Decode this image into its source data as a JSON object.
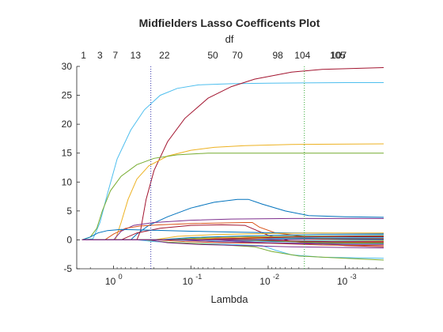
{
  "chart_data": {
    "type": "line",
    "title": "Midfielders Lasso Coefficents Plot",
    "top_axis_label": "df",
    "xlabel": "Lambda",
    "ylabel": "",
    "x_scale": "log",
    "x_direction": "reversed",
    "xlim": [
      3.0,
      0.00032
    ],
    "ylim": [
      -5,
      30
    ],
    "yticks": [
      "-5",
      "0",
      "5",
      "10",
      "15",
      "20",
      "25",
      "30"
    ],
    "xticks": [
      {
        "base": "10",
        "exp": "0",
        "value": 1
      },
      {
        "base": "10",
        "exp": "-1",
        "value": 0.1
      },
      {
        "base": "10",
        "exp": "-2",
        "value": 0.01
      },
      {
        "base": "10",
        "exp": "-3",
        "value": 0.001
      }
    ],
    "df_ticks": [
      {
        "label": "1",
        "lambda": 2.45
      },
      {
        "label": "3",
        "lambda": 1.5
      },
      {
        "label": "7",
        "lambda": 0.95
      },
      {
        "label": "13",
        "lambda": 0.52
      },
      {
        "label": "22",
        "lambda": 0.22
      },
      {
        "label": "50",
        "lambda": 0.052
      },
      {
        "label": "70",
        "lambda": 0.025
      },
      {
        "label": "98",
        "lambda": 0.0075
      },
      {
        "label": "104",
        "lambda": 0.0036
      },
      {
        "label": "105",
        "lambda": 0.00126
      },
      {
        "label": "107",
        "lambda": 0.00122
      }
    ],
    "vlines": [
      {
        "lambda": 0.33,
        "color": "#3333aa",
        "style": "dotted"
      },
      {
        "lambda": 0.0034,
        "color": "#33aa33",
        "style": "dotted"
      }
    ],
    "grid": false,
    "legend": "none",
    "series": [
      {
        "color": "#4DBEEE",
        "points": [
          [
            2.55,
            0
          ],
          [
            1.85,
            0.2
          ],
          [
            1.5,
            3
          ],
          [
            1.2,
            8
          ],
          [
            0.9,
            14
          ],
          [
            0.6,
            19
          ],
          [
            0.4,
            22.5
          ],
          [
            0.25,
            25
          ],
          [
            0.15,
            26.2
          ],
          [
            0.08,
            26.8
          ],
          [
            0.03,
            27
          ],
          [
            0.01,
            27.1
          ],
          [
            0.001,
            27.2
          ],
          [
            0.00032,
            27.2
          ]
        ]
      },
      {
        "color": "#A2142F",
        "points": [
          [
            2.55,
            0
          ],
          [
            0.5,
            0
          ],
          [
            0.45,
            1.5
          ],
          [
            0.38,
            7
          ],
          [
            0.3,
            12
          ],
          [
            0.2,
            17
          ],
          [
            0.12,
            21
          ],
          [
            0.06,
            24.5
          ],
          [
            0.03,
            26.5
          ],
          [
            0.015,
            27.8
          ],
          [
            0.005,
            29
          ],
          [
            0.002,
            29.5
          ],
          [
            0.00032,
            29.8
          ]
        ]
      },
      {
        "color": "#EDB120",
        "points": [
          [
            2.55,
            0
          ],
          [
            0.95,
            0
          ],
          [
            0.8,
            3
          ],
          [
            0.65,
            7
          ],
          [
            0.5,
            10.5
          ],
          [
            0.35,
            12.8
          ],
          [
            0.2,
            14.5
          ],
          [
            0.1,
            15.5
          ],
          [
            0.05,
            16
          ],
          [
            0.02,
            16.3
          ],
          [
            0.005,
            16.5
          ],
          [
            0.00032,
            16.6
          ]
        ]
      },
      {
        "color": "#77AC30",
        "points": [
          [
            2.55,
            0
          ],
          [
            2.0,
            0.5
          ],
          [
            1.65,
            2
          ],
          [
            1.4,
            5
          ],
          [
            1.1,
            8.5
          ],
          [
            0.8,
            11
          ],
          [
            0.5,
            13
          ],
          [
            0.3,
            14.1
          ],
          [
            0.15,
            14.7
          ],
          [
            0.06,
            15
          ],
          [
            0.01,
            15
          ],
          [
            0.00032,
            15
          ]
        ]
      },
      {
        "color": "#0072BD",
        "points": [
          [
            2.55,
            0
          ],
          [
            0.6,
            0
          ],
          [
            0.5,
            1
          ],
          [
            0.35,
            2.5
          ],
          [
            0.2,
            4
          ],
          [
            0.1,
            5.5
          ],
          [
            0.05,
            6.5
          ],
          [
            0.025,
            7
          ],
          [
            0.018,
            7
          ],
          [
            0.012,
            6.2
          ],
          [
            0.006,
            5
          ],
          [
            0.003,
            4.2
          ],
          [
            0.001,
            4
          ],
          [
            0.00032,
            3.9
          ]
        ]
      },
      {
        "color": "#7E2F8E",
        "points": [
          [
            2.55,
            0
          ],
          [
            1.0,
            0
          ],
          [
            0.8,
            1.5
          ],
          [
            0.55,
            2.5
          ],
          [
            0.3,
            3
          ],
          [
            0.1,
            3.4
          ],
          [
            0.03,
            3.6
          ],
          [
            0.005,
            3.7
          ],
          [
            0.00032,
            3.7
          ]
        ]
      },
      {
        "color": "#D95319",
        "points": [
          [
            2.55,
            0
          ],
          [
            1.3,
            0
          ],
          [
            1.0,
            1
          ],
          [
            0.7,
            2
          ],
          [
            0.45,
            2.4
          ],
          [
            0.25,
            2.6
          ],
          [
            0.1,
            2.8
          ],
          [
            0.02,
            3
          ],
          [
            0.016,
            3
          ],
          [
            0.013,
            2.2
          ],
          [
            0.008,
            1.2
          ],
          [
            0.003,
            0.5
          ],
          [
            0.00032,
            0.3
          ]
        ]
      },
      {
        "color": "#A2142F",
        "points": [
          [
            2.55,
            0
          ],
          [
            0.8,
            0
          ],
          [
            0.5,
            1.2
          ],
          [
            0.25,
            2
          ],
          [
            0.1,
            2.5
          ],
          [
            0.04,
            2.6
          ],
          [
            0.02,
            2.5
          ],
          [
            0.015,
            1.8
          ],
          [
            0.01,
            0.8
          ],
          [
            0.005,
            -0.3
          ],
          [
            0.001,
            -1
          ],
          [
            0.00032,
            -1.2
          ]
        ]
      },
      {
        "color": "#0072BD",
        "points": [
          [
            2.55,
            0
          ],
          [
            2.0,
            0.5
          ],
          [
            1.6,
            1.2
          ],
          [
            1.2,
            1.6
          ],
          [
            0.8,
            1.8
          ],
          [
            0.4,
            1.7
          ],
          [
            0.1,
            1.5
          ],
          [
            0.02,
            1.3
          ],
          [
            0.005,
            1.2
          ],
          [
            0.00032,
            1.1
          ]
        ]
      },
      {
        "color": "#4DBEEE",
        "points": [
          [
            2.55,
            0
          ],
          [
            0.5,
            0
          ],
          [
            0.3,
            -0.3
          ],
          [
            0.1,
            -0.6
          ],
          [
            0.03,
            -0.8
          ],
          [
            0.012,
            -1
          ],
          [
            0.008,
            -1.8
          ],
          [
            0.005,
            -2.6
          ],
          [
            0.002,
            -3
          ],
          [
            0.00032,
            -3.2
          ]
        ]
      },
      {
        "color": "#77AC30",
        "points": [
          [
            2.55,
            0
          ],
          [
            0.4,
            0
          ],
          [
            0.2,
            -0.4
          ],
          [
            0.05,
            -0.8
          ],
          [
            0.015,
            -1.2
          ],
          [
            0.009,
            -2
          ],
          [
            0.004,
            -2.8
          ],
          [
            0.001,
            -3.2
          ],
          [
            0.00032,
            -3.5
          ]
        ]
      },
      {
        "color": "#7E2F8E",
        "points": [
          [
            2.55,
            0
          ],
          [
            0.35,
            0
          ],
          [
            0.2,
            -0.5
          ],
          [
            0.08,
            -0.8
          ],
          [
            0.02,
            -1
          ],
          [
            0.005,
            -1.2
          ],
          [
            0.00032,
            -1.4
          ]
        ]
      },
      {
        "color": "#EDB120",
        "points": [
          [
            2.55,
            0
          ],
          [
            0.3,
            0
          ],
          [
            0.15,
            0.6
          ],
          [
            0.05,
            0.9
          ],
          [
            0.01,
            1.1
          ],
          [
            0.002,
            1.2
          ],
          [
            0.00032,
            1.2
          ]
        ]
      },
      {
        "color": "#D95319",
        "points": [
          [
            2.55,
            0
          ],
          [
            0.28,
            0
          ],
          [
            0.12,
            -0.3
          ],
          [
            0.04,
            -0.5
          ],
          [
            0.01,
            -0.6
          ],
          [
            0.002,
            -0.9
          ],
          [
            0.00032,
            -1
          ]
        ]
      },
      {
        "color": "#0072BD",
        "points": [
          [
            2.55,
            0
          ],
          [
            0.26,
            0
          ],
          [
            0.1,
            0.4
          ],
          [
            0.03,
            0.6
          ],
          [
            0.008,
            0.8
          ],
          [
            0.002,
            0.9
          ],
          [
            0.00032,
            0.9
          ]
        ]
      },
      {
        "color": "#77AC30",
        "points": [
          [
            2.55,
            0
          ],
          [
            0.22,
            0
          ],
          [
            0.08,
            0.3
          ],
          [
            0.02,
            0.5
          ],
          [
            0.005,
            0.6
          ],
          [
            0.00032,
            0.7
          ]
        ]
      },
      {
        "color": "#4DBEEE",
        "points": [
          [
            2.55,
            0
          ],
          [
            0.2,
            0
          ],
          [
            0.07,
            -0.2
          ],
          [
            0.02,
            -0.4
          ],
          [
            0.005,
            -0.6
          ],
          [
            0.00032,
            -0.7
          ]
        ]
      },
      {
        "color": "#A2142F",
        "points": [
          [
            2.55,
            0
          ],
          [
            0.18,
            0
          ],
          [
            0.06,
            0.2
          ],
          [
            0.015,
            0.3
          ],
          [
            0.004,
            0.4
          ],
          [
            0.00032,
            0.5
          ]
        ]
      },
      {
        "color": "#7E2F8E",
        "points": [
          [
            2.55,
            0
          ],
          [
            0.15,
            0
          ],
          [
            0.05,
            -0.3
          ],
          [
            0.012,
            -0.5
          ],
          [
            0.003,
            -0.6
          ],
          [
            0.00032,
            -0.6
          ]
        ]
      },
      {
        "color": "#EDB120",
        "points": [
          [
            2.55,
            0
          ],
          [
            0.12,
            0
          ],
          [
            0.04,
            0.4
          ],
          [
            0.01,
            0.5
          ],
          [
            0.003,
            0.3
          ],
          [
            0.00032,
            0.2
          ]
        ]
      },
      {
        "color": "#D95319",
        "points": [
          [
            2.55,
            0
          ],
          [
            0.1,
            0
          ],
          [
            0.03,
            0.2
          ],
          [
            0.008,
            0.4
          ],
          [
            0.002,
            0.2
          ],
          [
            0.00032,
            0.1
          ]
        ]
      },
      {
        "color": "#0072BD",
        "points": [
          [
            2.55,
            0
          ],
          [
            0.09,
            0
          ],
          [
            0.03,
            -0.1
          ],
          [
            0.008,
            -0.3
          ],
          [
            0.002,
            -0.4
          ],
          [
            0.00032,
            -0.5
          ]
        ]
      },
      {
        "color": "#77AC30",
        "points": [
          [
            2.55,
            0
          ],
          [
            0.08,
            0
          ],
          [
            0.025,
            0.1
          ],
          [
            0.007,
            0.2
          ],
          [
            0.002,
            0.3
          ],
          [
            0.00032,
            0.3
          ]
        ]
      },
      {
        "color": "#4DBEEE",
        "points": [
          [
            2.55,
            0
          ],
          [
            0.07,
            0
          ],
          [
            0.02,
            -0.2
          ],
          [
            0.006,
            -0.2
          ],
          [
            0.002,
            -0.1
          ],
          [
            0.00032,
            -0.1
          ]
        ]
      },
      {
        "color": "#A2142F",
        "points": [
          [
            2.55,
            0
          ],
          [
            0.06,
            0
          ],
          [
            0.02,
            0.3
          ],
          [
            0.005,
            0.5
          ],
          [
            0.001,
            0.6
          ],
          [
            0.00032,
            0.6
          ]
        ]
      },
      {
        "color": "#7E2F8E",
        "points": [
          [
            2.55,
            0
          ],
          [
            0.05,
            0
          ],
          [
            0.015,
            -0.4
          ],
          [
            0.004,
            -0.7
          ],
          [
            0.001,
            -0.8
          ],
          [
            0.00032,
            -0.8
          ]
        ]
      },
      {
        "color": "#EDB120",
        "points": [
          [
            2.55,
            0
          ],
          [
            0.04,
            0
          ],
          [
            0.012,
            0.2
          ],
          [
            0.003,
            0.1
          ],
          [
            0.001,
            0
          ],
          [
            0.00032,
            -0.1
          ]
        ]
      },
      {
        "color": "#D95319",
        "points": [
          [
            2.55,
            0
          ],
          [
            0.035,
            0
          ],
          [
            0.01,
            -0.1
          ],
          [
            0.003,
            -0.3
          ],
          [
            0.001,
            -0.4
          ],
          [
            0.00032,
            -0.4
          ]
        ]
      },
      {
        "color": "#0072BD",
        "points": [
          [
            2.55,
            0
          ],
          [
            0.03,
            0
          ],
          [
            0.01,
            0.1
          ],
          [
            0.003,
            0.2
          ],
          [
            0.001,
            0.1
          ],
          [
            0.00032,
            0
          ]
        ]
      },
      {
        "color": "#77AC30",
        "points": [
          [
            2.55,
            0
          ],
          [
            0.025,
            0
          ],
          [
            0.008,
            -0.2
          ],
          [
            0.002,
            -0.5
          ],
          [
            0.00032,
            -0.6
          ]
        ]
      },
      {
        "color": "#4DBEEE",
        "points": [
          [
            2.55,
            0
          ],
          [
            0.02,
            0
          ],
          [
            0.006,
            0.3
          ],
          [
            0.002,
            0.4
          ],
          [
            0.00032,
            0.4
          ]
        ]
      },
      {
        "color": "#A2142F",
        "points": [
          [
            2.55,
            0
          ],
          [
            0.015,
            0
          ],
          [
            0.005,
            -0.2
          ],
          [
            0.0015,
            -0.3
          ],
          [
            0.00032,
            -0.3
          ]
        ]
      },
      {
        "color": "#7E2F8E",
        "points": [
          [
            2.55,
            0
          ],
          [
            0.012,
            0
          ],
          [
            0.004,
            0.1
          ],
          [
            0.0012,
            0.2
          ],
          [
            0.00032,
            0.2
          ]
        ]
      }
    ]
  }
}
